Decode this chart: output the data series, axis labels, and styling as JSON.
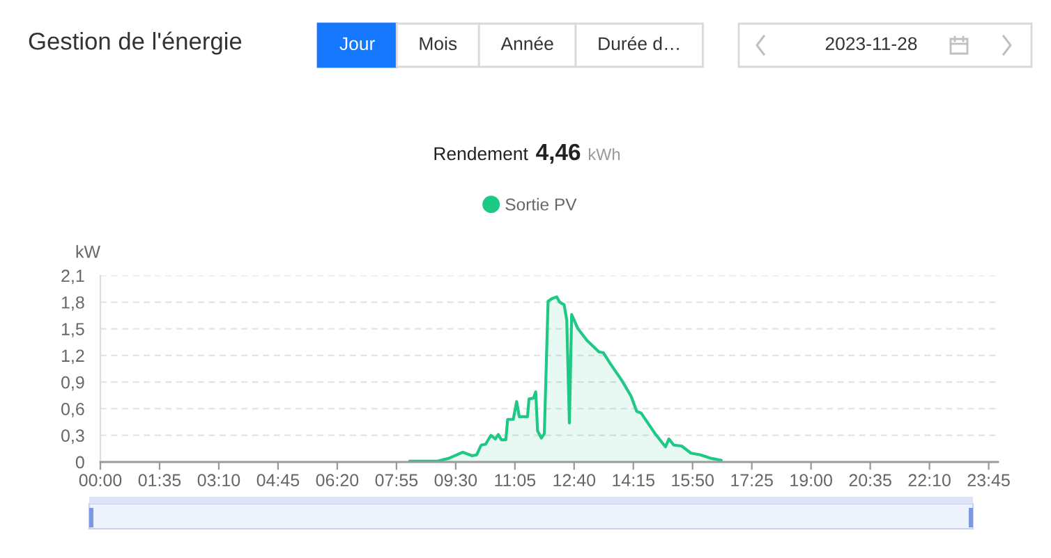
{
  "chart_data": {
    "type": "area",
    "title": "Gestion de l'énergie",
    "subtitle": "Rendement 4,46 kWh",
    "ylabel": "kW",
    "annotations": [
      "Jour",
      "Mois",
      "Année",
      "Durée d…",
      "2023-11-28"
    ],
    "series": [
      {
        "name": "Sortie PV",
        "color": "#1ec885",
        "x": [
          8.27,
          9.01,
          9.31,
          9.69,
          9.94,
          10.06,
          10.18,
          10.3,
          10.44,
          10.56,
          10.64,
          10.72,
          10.84,
          10.89,
          11.04,
          11.13,
          11.2,
          11.42,
          11.46,
          11.58,
          11.64,
          11.69,
          11.79,
          11.87,
          11.97,
          12.07,
          12.2,
          12.28,
          12.4,
          12.47,
          12.54,
          12.6,
          12.77,
          13.01,
          13.33,
          13.45,
          13.63,
          13.94,
          14.19,
          14.34,
          14.46,
          14.83,
          15.11,
          15.2,
          15.33,
          15.54,
          15.79,
          16.04,
          16.34,
          16.6
        ],
        "values": [
          0.01,
          0.01,
          0.04,
          0.11,
          0.07,
          0.08,
          0.19,
          0.2,
          0.3,
          0.26,
          0.31,
          0.25,
          0.25,
          0.48,
          0.48,
          0.68,
          0.51,
          0.51,
          0.71,
          0.72,
          0.79,
          0.35,
          0.27,
          0.32,
          1.81,
          1.84,
          1.86,
          1.8,
          1.77,
          1.6,
          0.44,
          1.66,
          1.5,
          1.37,
          1.24,
          1.23,
          1.11,
          0.92,
          0.74,
          0.57,
          0.55,
          0.32,
          0.17,
          0.26,
          0.19,
          0.18,
          0.1,
          0.08,
          0.04,
          0.02
        ]
      }
    ],
    "xlim": [
      0,
      24
    ],
    "xticks": [
      {
        "value": 0,
        "label": "00:00"
      },
      {
        "value": 1.5833,
        "label": "01:35"
      },
      {
        "value": 3.1667,
        "label": "03:10"
      },
      {
        "value": 4.75,
        "label": "04:45"
      },
      {
        "value": 6.3333,
        "label": "06:20"
      },
      {
        "value": 7.9167,
        "label": "07:55"
      },
      {
        "value": 9.5,
        "label": "09:30"
      },
      {
        "value": 11.0833,
        "label": "11:05"
      },
      {
        "value": 12.6667,
        "label": "12:40"
      },
      {
        "value": 14.25,
        "label": "14:15"
      },
      {
        "value": 15.8333,
        "label": "15:50"
      },
      {
        "value": 17.4167,
        "label": "17:25"
      },
      {
        "value": 19,
        "label": "19:00"
      },
      {
        "value": 20.5833,
        "label": "20:35"
      },
      {
        "value": 22.1667,
        "label": "22:10"
      },
      {
        "value": 23.75,
        "label": "23:45"
      }
    ],
    "ylim": [
      0,
      2.1
    ],
    "yticks": [
      0,
      {
        "value": 0.3,
        "label": "0,3"
      },
      {
        "value": 0.6,
        "label": "0,6"
      },
      {
        "value": 0.9,
        "label": "0,9"
      },
      {
        "value": 1.2,
        "label": "1,2"
      },
      {
        "value": 1.5,
        "label": "1,5"
      },
      {
        "value": 1.8,
        "label": "1,8"
      },
      {
        "value": 2.1,
        "label": "2,1"
      }
    ],
    "grid": "y",
    "legend": "top"
  }
}
